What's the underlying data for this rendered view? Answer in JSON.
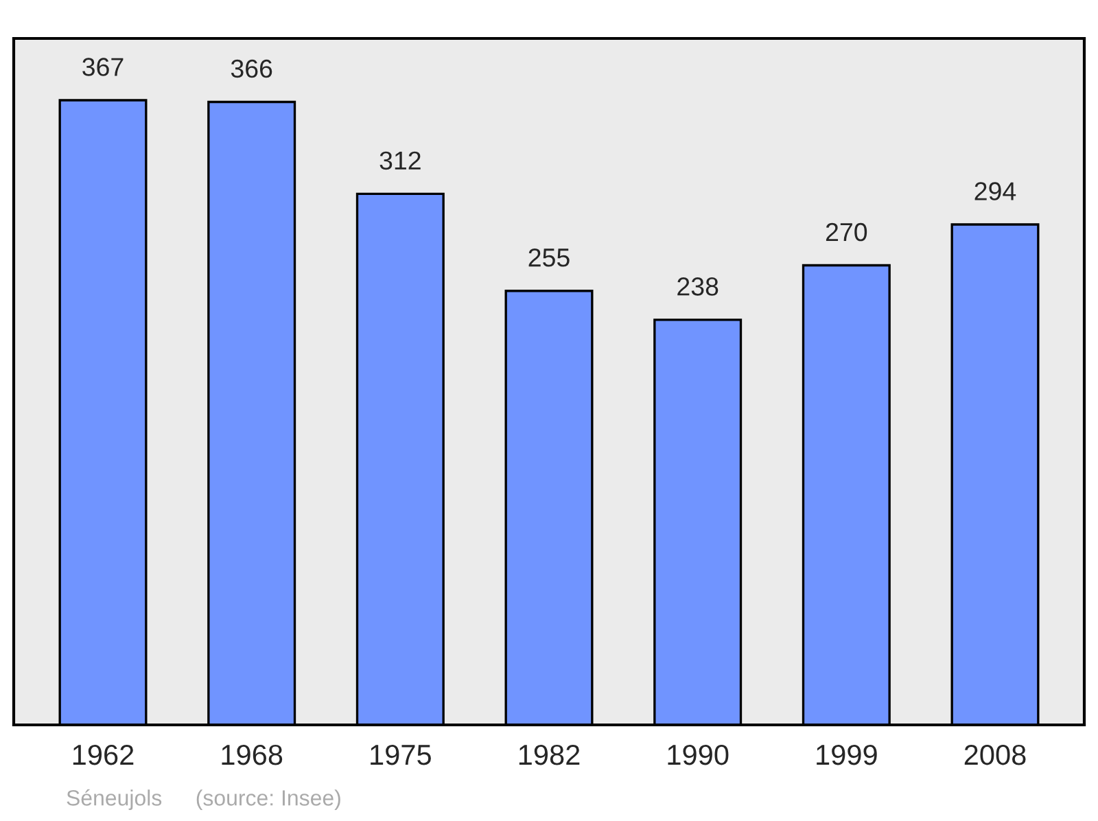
{
  "chart_data": {
    "type": "bar",
    "categories": [
      "1962",
      "1968",
      "1975",
      "1982",
      "1990",
      "1999",
      "2008"
    ],
    "values": [
      367,
      366,
      312,
      255,
      238,
      270,
      294
    ],
    "color": "#7094ff",
    "data_labels": true,
    "grid": false,
    "annotations": [
      "Séneujols",
      "(source: Insee)"
    ]
  }
}
